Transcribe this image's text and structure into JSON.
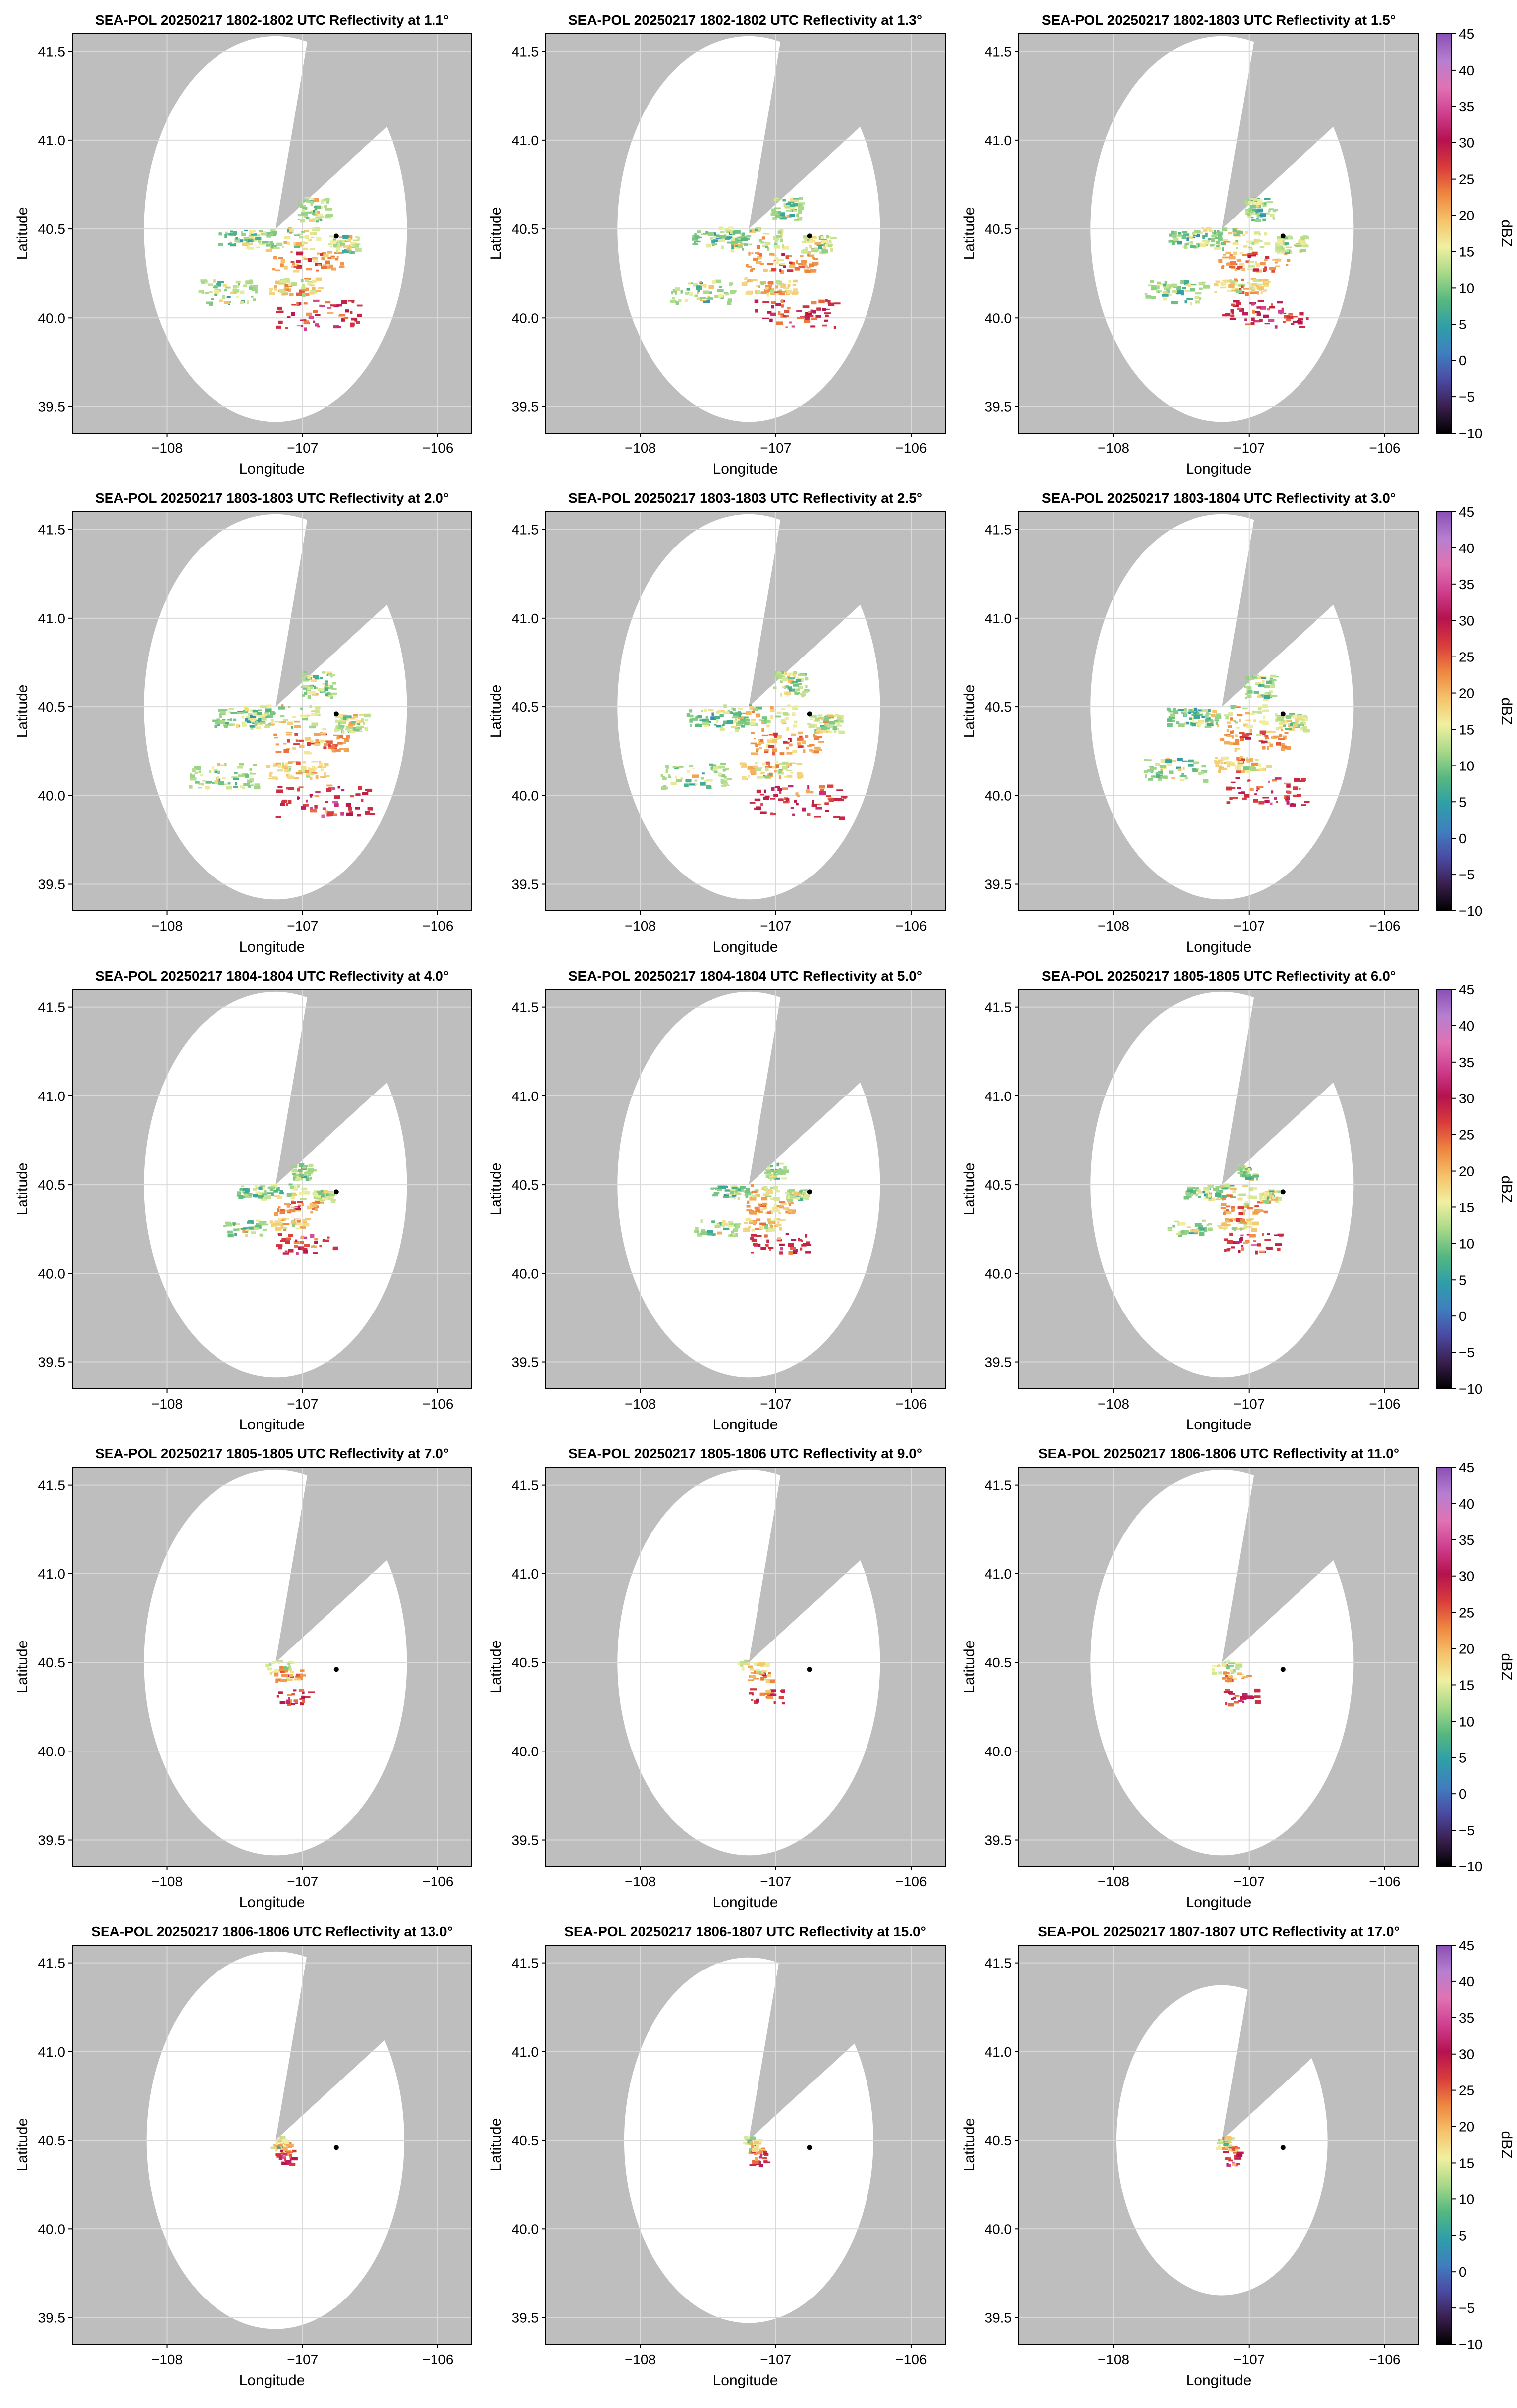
{
  "figure": {
    "background": "#ffffff",
    "no_data_color": "#bebebe",
    "coverage_color": "#ffffff",
    "grid_color": "#d9d9d9"
  },
  "chart_data": {
    "type": "heatmap",
    "xlabel": "Longitude",
    "ylabel": "Latitude",
    "xlim": [
      -108.7,
      -105.75
    ],
    "ylim": [
      39.35,
      41.6
    ],
    "xticks": [
      -108,
      -107,
      -106
    ],
    "xtick_labels": [
      "−108",
      "−107",
      "−106"
    ],
    "yticks": [
      39.5,
      40.0,
      40.5,
      41.0,
      41.5
    ],
    "ytick_labels": [
      "39.5",
      "40.0",
      "40.5",
      "41.0",
      "41.5"
    ],
    "grid": true,
    "radar_location": [
      -107.2,
      40.5
    ],
    "marker_location": [
      -106.75,
      40.46
    ],
    "blocked_sector": {
      "from_bearing_deg": 14,
      "to_bearing_deg": 58
    },
    "colorbar": {
      "label": "dBZ",
      "min": -10,
      "max": 45,
      "ticks": [
        -10,
        -5,
        0,
        5,
        10,
        15,
        20,
        25,
        30,
        35,
        40,
        45
      ],
      "tick_labels": [
        "−10",
        "−5",
        "0",
        "5",
        "10",
        "15",
        "20",
        "25",
        "30",
        "35",
        "40",
        "45"
      ],
      "colors": [
        "#000000",
        "#3b1f4f",
        "#4b4aa3",
        "#3f7fbf",
        "#2f9fa8",
        "#56b87f",
        "#a8d989",
        "#f1f0a0",
        "#f5c26a",
        "#ee8540",
        "#d93b3b",
        "#b5124f",
        "#cf3f8f",
        "#e073b3",
        "#b77fd0",
        "#8a4fb5"
      ]
    },
    "panels": [
      {
        "title": "SEA-POL 20250217 1802-1802 UTC Reflectivity at 1.1°",
        "elevation_deg": 1.1,
        "range_deg": 0.97,
        "echo_extent": "wide"
      },
      {
        "title": "SEA-POL 20250217 1802-1802 UTC Reflectivity at 1.3°",
        "elevation_deg": 1.3,
        "range_deg": 0.97,
        "echo_extent": "wide"
      },
      {
        "title": "SEA-POL 20250217 1802-1803 UTC Reflectivity at 1.5°",
        "elevation_deg": 1.5,
        "range_deg": 0.97,
        "echo_extent": "wide"
      },
      {
        "title": "SEA-POL 20250217 1803-1803 UTC Reflectivity at 2.0°",
        "elevation_deg": 2.0,
        "range_deg": 0.97,
        "echo_extent": "widest"
      },
      {
        "title": "SEA-POL 20250217 1803-1803 UTC Reflectivity at 2.5°",
        "elevation_deg": 2.5,
        "range_deg": 0.97,
        "echo_extent": "widest"
      },
      {
        "title": "SEA-POL 20250217 1803-1804 UTC Reflectivity at 3.0°",
        "elevation_deg": 3.0,
        "range_deg": 0.97,
        "echo_extent": "wide"
      },
      {
        "title": "SEA-POL 20250217 1804-1804 UTC Reflectivity at 4.0°",
        "elevation_deg": 4.0,
        "range_deg": 0.97,
        "echo_extent": "medium"
      },
      {
        "title": "SEA-POL 20250217 1804-1804 UTC Reflectivity at 5.0°",
        "elevation_deg": 5.0,
        "range_deg": 0.97,
        "echo_extent": "medium"
      },
      {
        "title": "SEA-POL 20250217 1805-1805 UTC Reflectivity at 6.0°",
        "elevation_deg": 6.0,
        "range_deg": 0.97,
        "echo_extent": "medium"
      },
      {
        "title": "SEA-POL 20250217 1805-1805 UTC Reflectivity at 7.0°",
        "elevation_deg": 7.0,
        "range_deg": 0.97,
        "echo_extent": "small"
      },
      {
        "title": "SEA-POL 20250217 1805-1806 UTC Reflectivity at 9.0°",
        "elevation_deg": 9.0,
        "range_deg": 0.97,
        "echo_extent": "small"
      },
      {
        "title": "SEA-POL 20250217 1806-1806 UTC Reflectivity at 11.0°",
        "elevation_deg": 11.0,
        "range_deg": 0.97,
        "echo_extent": "small"
      },
      {
        "title": "SEA-POL 20250217 1806-1806 UTC Reflectivity at 13.0°",
        "elevation_deg": 13.0,
        "range_deg": 0.95,
        "echo_extent": "tiny"
      },
      {
        "title": "SEA-POL 20250217 1806-1807 UTC Reflectivity at 15.0°",
        "elevation_deg": 15.0,
        "range_deg": 0.92,
        "echo_extent": "tiny"
      },
      {
        "title": "SEA-POL 20250217 1807-1807 UTC Reflectivity at 17.0°",
        "elevation_deg": 17.0,
        "range_deg": 0.78,
        "echo_extent": "tiny"
      }
    ]
  }
}
